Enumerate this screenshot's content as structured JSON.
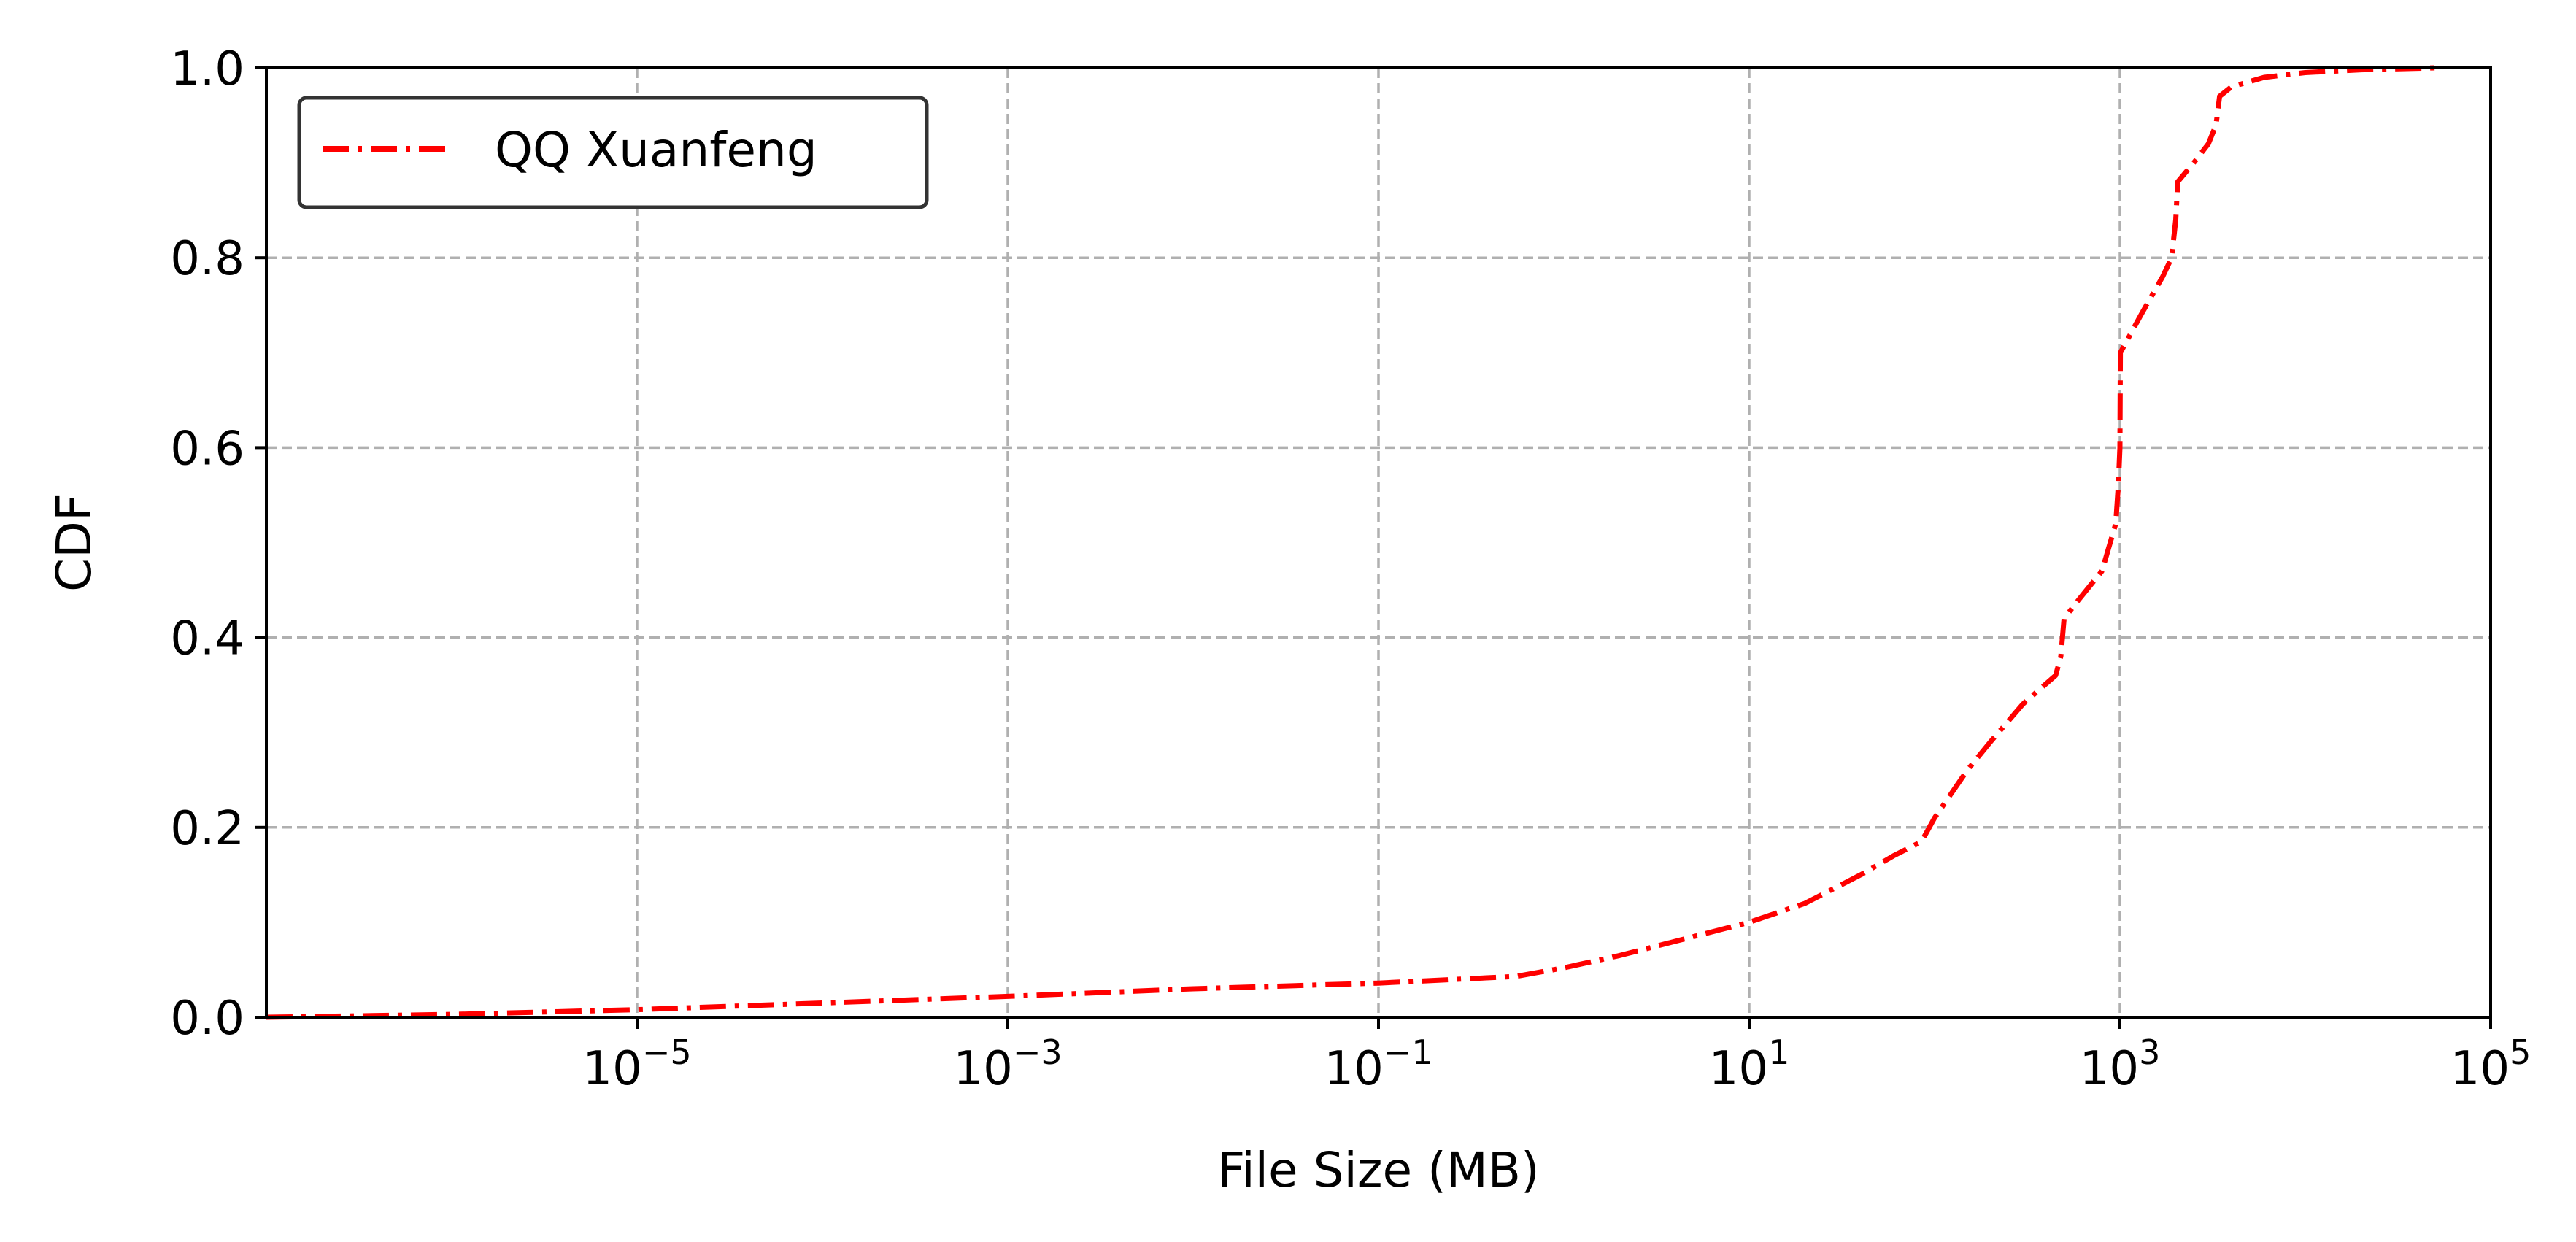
{
  "chart_data": {
    "type": "line",
    "title": "",
    "xlabel": "File Size (MB)",
    "ylabel": "CDF",
    "x_scale": "log",
    "xlim": [
      1e-07,
      100000
    ],
    "ylim": [
      0,
      1
    ],
    "grid": true,
    "legend_position": "top-left",
    "x_ticks": [
      {
        "value": 1e-05,
        "base": "10",
        "exp": "−5"
      },
      {
        "value": 0.001,
        "base": "10",
        "exp": "−3"
      },
      {
        "value": 0.1,
        "base": "10",
        "exp": "−1"
      },
      {
        "value": 10,
        "base": "10",
        "exp": "1"
      },
      {
        "value": 1000,
        "base": "10",
        "exp": "3"
      },
      {
        "value": 100000,
        "base": "10",
        "exp": "5"
      }
    ],
    "y_ticks": [
      {
        "value": 0.0,
        "label": "0.0"
      },
      {
        "value": 0.2,
        "label": "0.2"
      },
      {
        "value": 0.4,
        "label": "0.4"
      },
      {
        "value": 0.6,
        "label": "0.6"
      },
      {
        "value": 0.8,
        "label": "0.8"
      },
      {
        "value": 1.0,
        "label": "1.0"
      }
    ],
    "series": [
      {
        "name": "QQ Xuanfeng",
        "color": "#ff0000",
        "line_style": "dash-dot",
        "points": [
          [
            1e-07,
            0.0
          ],
          [
            1e-06,
            0.003
          ],
          [
            1e-05,
            0.008
          ],
          [
            0.0001,
            0.015
          ],
          [
            0.001,
            0.022
          ],
          [
            0.01,
            0.03
          ],
          [
            0.1,
            0.036
          ],
          [
            0.55,
            0.043
          ],
          [
            1,
            0.052
          ],
          [
            2,
            0.065
          ],
          [
            4,
            0.08
          ],
          [
            10,
            0.1
          ],
          [
            20,
            0.12
          ],
          [
            40,
            0.15
          ],
          [
            60,
            0.17
          ],
          [
            85,
            0.185
          ],
          [
            100,
            0.21
          ],
          [
            150,
            0.26
          ],
          [
            200,
            0.29
          ],
          [
            300,
            0.33
          ],
          [
            450,
            0.36
          ],
          [
            480,
            0.38
          ],
          [
            500,
            0.42
          ],
          [
            600,
            0.44
          ],
          [
            800,
            0.47
          ],
          [
            950,
            0.52
          ],
          [
            980,
            0.56
          ],
          [
            1000,
            0.6
          ],
          [
            1005,
            0.7
          ],
          [
            1300,
            0.74
          ],
          [
            1700,
            0.78
          ],
          [
            1900,
            0.8
          ],
          [
            2000,
            0.84
          ],
          [
            2050,
            0.88
          ],
          [
            2500,
            0.9
          ],
          [
            3000,
            0.92
          ],
          [
            3300,
            0.94
          ],
          [
            3450,
            0.97
          ],
          [
            4000,
            0.98
          ],
          [
            6000,
            0.99
          ],
          [
            10000,
            0.995
          ],
          [
            20000,
            0.998
          ],
          [
            50000,
            1.0
          ]
        ]
      }
    ]
  }
}
